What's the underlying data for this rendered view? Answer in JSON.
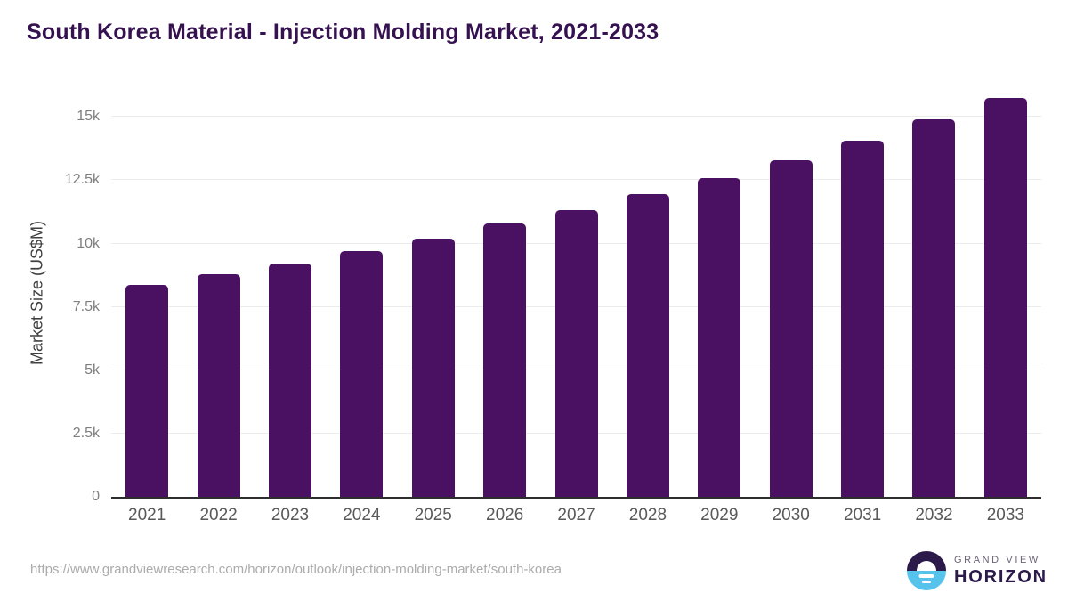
{
  "title": "South Korea Material - Injection Molding Market, 2021-2033",
  "chart_data": {
    "type": "bar",
    "title": "South Korea Material - Injection Molding Market, 2021-2033",
    "categories": [
      "2021",
      "2022",
      "2023",
      "2024",
      "2025",
      "2026",
      "2027",
      "2028",
      "2029",
      "2030",
      "2031",
      "2032",
      "2033"
    ],
    "values": [
      8360,
      8790,
      9210,
      9700,
      10180,
      10780,
      11330,
      11960,
      12570,
      13300,
      14070,
      14890,
      15760
    ],
    "xlabel": "",
    "ylabel": "Market Size (US$M)",
    "ylim": [
      0,
      16100
    ],
    "ytick_values": [
      0,
      2500,
      5000,
      7500,
      10000,
      12500,
      15000
    ],
    "ytick_labels": [
      "0",
      "2.5k",
      "5k",
      "7.5k",
      "10k",
      "12.5k",
      "15k"
    ],
    "grid": true,
    "legend": false,
    "bar_color": "#4a1163"
  },
  "colors": {
    "title": "#35124f",
    "bar": "#4a1163",
    "axis_line": "#2e2e2e",
    "gridline": "#ececec",
    "ytick_text": "#7f7f7f",
    "xtick_text": "#595959",
    "url_text": "#ababab",
    "logo_navy": "#2b1a4a",
    "logo_blue": "#56c3ec",
    "logo_gray_text": "#6b6477"
  },
  "footer": {
    "source_url": "https://www.grandviewresearch.com/horizon/outlook/injection-molding-market/south-korea",
    "logo": {
      "top_text": "GRAND VIEW",
      "bottom_text": "HORIZON"
    }
  }
}
